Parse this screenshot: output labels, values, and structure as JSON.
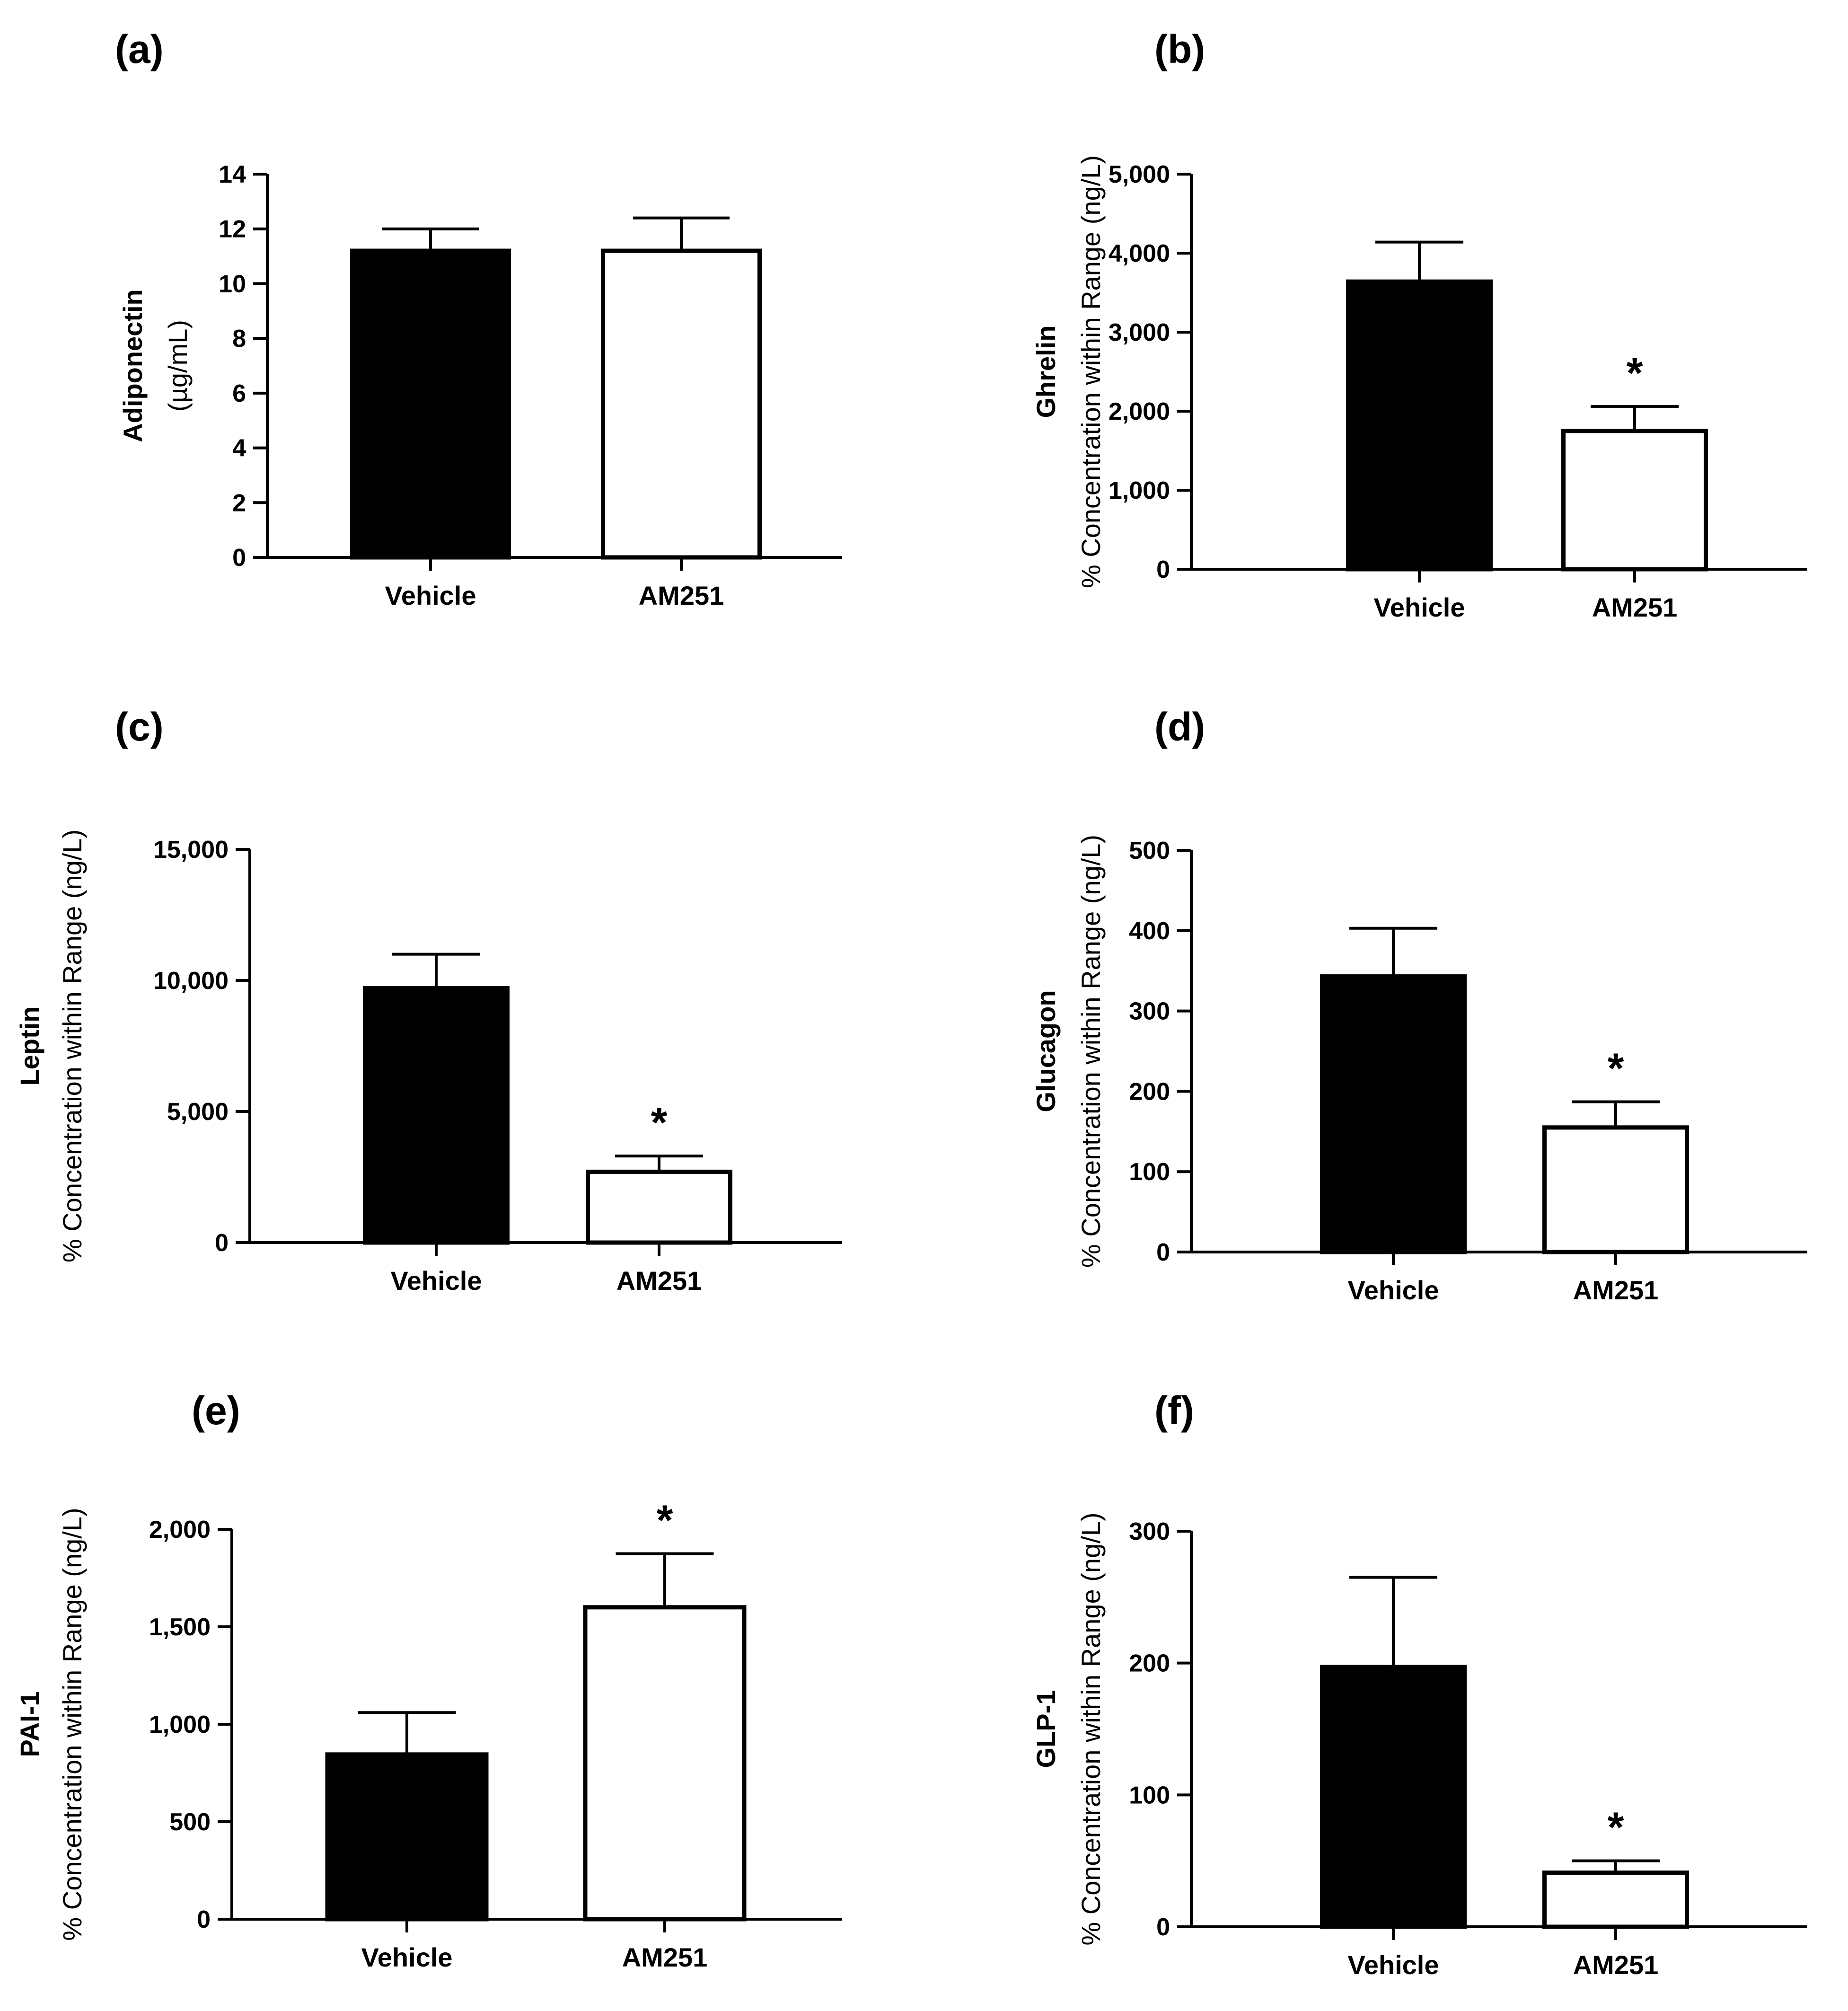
{
  "chart_data": [
    {
      "type": "bar",
      "panel_label": "(a)",
      "categories": [
        "Vehicle",
        "AM251"
      ],
      "values": [
        11.2,
        11.2
      ],
      "errors": [
        0.8,
        1.2
      ],
      "significance": [
        "",
        ""
      ],
      "ylabel_main": "Adiponectin",
      "ylabel_sub": "(µg/mL)",
      "ylim": [
        0,
        14
      ],
      "yticks": [
        0,
        2,
        4,
        6,
        8,
        10,
        12,
        14
      ],
      "ytick_labels": [
        "0",
        "2",
        "4",
        "6",
        "8",
        "10",
        "12",
        "14"
      ],
      "bar_fills": [
        "#000000",
        "#ffffff"
      ]
    },
    {
      "type": "bar",
      "panel_label": "(b)",
      "categories": [
        "Vehicle",
        "AM251"
      ],
      "values": [
        3640,
        1750
      ],
      "errors": [
        500,
        310
      ],
      "significance": [
        "",
        "*"
      ],
      "ylabel_main": "Ghrelin",
      "ylabel_sub": "% Concentration within Range (ng/L)",
      "ylim": [
        0,
        5000
      ],
      "yticks": [
        0,
        1000,
        2000,
        3000,
        4000,
        5000
      ],
      "ytick_labels": [
        "0",
        "1,000",
        "2,000",
        "3,000",
        "4,000",
        "5,000"
      ],
      "bar_fills": [
        "#000000",
        "#ffffff"
      ]
    },
    {
      "type": "bar",
      "panel_label": "(c)",
      "categories": [
        "Vehicle",
        "AM251"
      ],
      "values": [
        9700,
        2700
      ],
      "errors": [
        1300,
        600
      ],
      "significance": [
        "",
        "*"
      ],
      "ylabel_main": "Leptin",
      "ylabel_sub": "% Concentration within Range (ng/L)",
      "ylim": [
        0,
        15000
      ],
      "yticks": [
        0,
        5000,
        10000,
        15000
      ],
      "ytick_labels": [
        "0",
        "5,000",
        "10,000",
        "15,000"
      ],
      "bar_fills": [
        "#000000",
        "#ffffff"
      ]
    },
    {
      "type": "bar",
      "panel_label": "(d)",
      "categories": [
        "Vehicle",
        "AM251"
      ],
      "values": [
        343,
        155
      ],
      "errors": [
        60,
        32
      ],
      "significance": [
        "",
        "*"
      ],
      "ylabel_main": "Glucagon",
      "ylabel_sub": "% Concentration within Range (ng/L)",
      "ylim": [
        0,
        500
      ],
      "yticks": [
        0,
        100,
        200,
        300,
        400,
        500
      ],
      "ytick_labels": [
        "0",
        "100",
        "200",
        "300",
        "400",
        "500"
      ],
      "bar_fills": [
        "#000000",
        "#ffffff"
      ]
    },
    {
      "type": "bar",
      "panel_label": "(e)",
      "categories": [
        "Vehicle",
        "AM251"
      ],
      "values": [
        845,
        1600
      ],
      "errors": [
        215,
        275
      ],
      "significance": [
        "",
        "*"
      ],
      "ylabel_main": "PAI-1",
      "ylabel_sub": "% Concentration within Range (ng/L)",
      "ylim": [
        0,
        2000
      ],
      "yticks": [
        0,
        500,
        1000,
        1500,
        2000
      ],
      "ytick_labels": [
        "0",
        "500",
        "1,000",
        "1,500",
        "2,000"
      ],
      "bar_fills": [
        "#000000",
        "#ffffff"
      ]
    },
    {
      "type": "bar",
      "panel_label": "(f)",
      "categories": [
        "Vehicle",
        "AM251"
      ],
      "values": [
        197,
        41
      ],
      "errors": [
        68,
        9
      ],
      "significance": [
        "",
        "*"
      ],
      "ylabel_main": "GLP-1",
      "ylabel_sub": "% Concentration within Range (ng/L)",
      "ylim": [
        0,
        300
      ],
      "yticks": [
        0,
        100,
        200,
        300
      ],
      "ytick_labels": [
        "0",
        "100",
        "200",
        "300"
      ],
      "bar_fills": [
        "#000000",
        "#ffffff"
      ]
    }
  ]
}
